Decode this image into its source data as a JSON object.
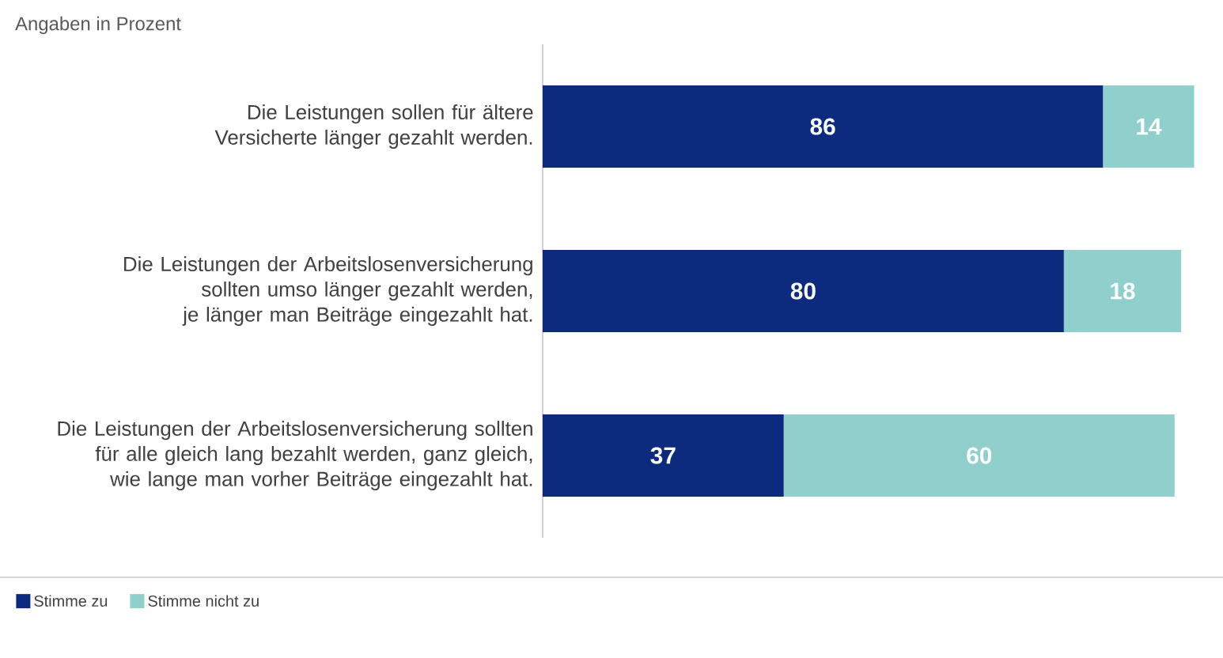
{
  "chart_data": {
    "type": "bar",
    "orientation": "horizontal",
    "stacked": true,
    "title": "Angaben in Prozent",
    "categories": [
      "Die Leistungen sollen für ältere Versicherte länger gezahlt werden.",
      "Die Leistungen der Arbeitslosenversicherung sollten umso länger gezahlt werden, je länger man Beiträge eingezahlt hat.",
      "Die Leistungen der Arbeitslosenversicherung sollten für alle gleich lang bezahlt werden, ganz gleich, wie lange man vorher Beiträge eingezahlt hat."
    ],
    "series": [
      {
        "name": "Stimme zu",
        "color": "#0d2b7e",
        "values": [
          86,
          80,
          37
        ]
      },
      {
        "name": "Stimme nicht zu",
        "color": "#8fcfcc",
        "values": [
          14,
          18,
          60
        ]
      }
    ],
    "data_labels": true,
    "legend": "bottom left",
    "tick_labels": "y"
  }
}
